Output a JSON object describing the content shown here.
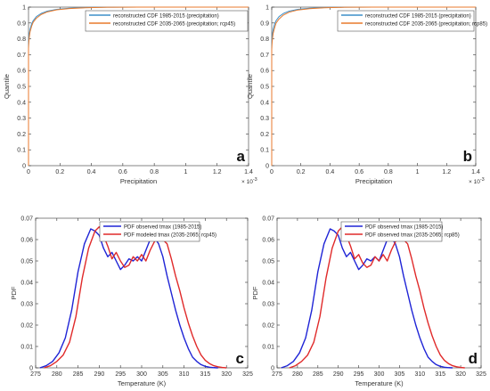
{
  "colors": {
    "blue_cdf": "#3d8fc9",
    "orange_cdf": "#e87a2c",
    "pdf_blue": "#1f24d6",
    "pdf_red": "#e02a2a",
    "axis": "#333333",
    "frame": "#666666"
  },
  "chart_data": [
    {
      "panel_label": "a",
      "type": "line",
      "xlabel": "Precipitation",
      "ylabel": "Quantile",
      "x_exponent_label": "× 10",
      "x_exponent_value": "-3",
      "xlim": [
        0,
        1.4
      ],
      "ylim": [
        0,
        1
      ],
      "xticks": [
        "0",
        "0.2",
        "0.4",
        "0.6",
        "0.8",
        "1",
        "1.2",
        "1.4"
      ],
      "yticks": [
        "0",
        "0.1",
        "0.2",
        "0.3",
        "0.4",
        "0.5",
        "0.6",
        "0.7",
        "0.8",
        "0.9",
        "1"
      ],
      "grid": false,
      "legend_position": "top-right",
      "series": [
        {
          "name": "reconstructed CDF 1985-2015 (precipitation)",
          "color": "#3d8fc9",
          "x": [
            0,
            0,
            0.002,
            0.005,
            0.01,
            0.02,
            0.03,
            0.05,
            0.08,
            0.12,
            0.18,
            0.26,
            0.36,
            0.5,
            0.7,
            1.0,
            1.4
          ],
          "y": [
            0,
            0.76,
            0.8,
            0.83,
            0.86,
            0.895,
            0.915,
            0.94,
            0.96,
            0.975,
            0.986,
            0.993,
            0.997,
            0.999,
            1.0,
            1.0,
            1.0
          ]
        },
        {
          "name": "reconstructed CDF 2035-2065 (precipitation; rcp45)",
          "color": "#e87a2c",
          "x": [
            0,
            0,
            0.002,
            0.005,
            0.01,
            0.02,
            0.03,
            0.05,
            0.08,
            0.12,
            0.18,
            0.26,
            0.36,
            0.5,
            0.7,
            1.0,
            1.4
          ],
          "y": [
            0,
            0.74,
            0.78,
            0.81,
            0.845,
            0.88,
            0.905,
            0.93,
            0.953,
            0.97,
            0.983,
            0.991,
            0.996,
            0.999,
            1.0,
            1.0,
            1.0
          ]
        }
      ]
    },
    {
      "panel_label": "b",
      "type": "line",
      "xlabel": "Precipitation",
      "ylabel": "Quantile",
      "x_exponent_label": "× 10",
      "x_exponent_value": "-3",
      "xlim": [
        0,
        1.4
      ],
      "ylim": [
        0,
        1
      ],
      "xticks": [
        "0",
        "0.2",
        "0.4",
        "0.6",
        "0.8",
        "1",
        "1.2",
        "1.4"
      ],
      "yticks": [
        "0",
        "0.1",
        "0.2",
        "0.3",
        "0.4",
        "0.5",
        "0.6",
        "0.7",
        "0.8",
        "0.9",
        "1"
      ],
      "grid": false,
      "legend_position": "top-right",
      "series": [
        {
          "name": "reconstructed CDF 1985-2015 (precipitation)",
          "color": "#3d8fc9",
          "x": [
            0,
            0,
            0.002,
            0.005,
            0.01,
            0.02,
            0.03,
            0.05,
            0.08,
            0.12,
            0.18,
            0.26,
            0.36,
            0.5,
            0.7,
            1.0,
            1.4
          ],
          "y": [
            0,
            0.76,
            0.8,
            0.83,
            0.86,
            0.895,
            0.915,
            0.94,
            0.96,
            0.975,
            0.986,
            0.993,
            0.997,
            0.999,
            1.0,
            1.0,
            1.0
          ]
        },
        {
          "name": "reconstructed CDF 2035-2065 (precipitation; rcp85)",
          "color": "#e87a2c",
          "x": [
            0,
            0,
            0.002,
            0.005,
            0.01,
            0.02,
            0.03,
            0.05,
            0.08,
            0.12,
            0.18,
            0.26,
            0.36,
            0.5,
            0.7,
            1.0,
            1.4
          ],
          "y": [
            0,
            0.73,
            0.77,
            0.8,
            0.835,
            0.87,
            0.9,
            0.925,
            0.95,
            0.968,
            0.982,
            0.99,
            0.996,
            0.999,
            1.0,
            1.0,
            1.0
          ]
        }
      ]
    },
    {
      "panel_label": "c",
      "type": "line",
      "xlabel": "Temperature (K)",
      "ylabel": "PDF",
      "xlim": [
        275,
        325
      ],
      "ylim": [
        0,
        0.07
      ],
      "xticks": [
        "275",
        "280",
        "285",
        "290",
        "295",
        "300",
        "305",
        "310",
        "315",
        "320",
        "325"
      ],
      "yticks": [
        "0",
        "0.01",
        "0.02",
        "0.03",
        "0.04",
        "0.05",
        "0.06",
        "0.07"
      ],
      "grid": false,
      "legend_position": "top-left",
      "series": [
        {
          "name": "PDF observed tmax (1985-2015)",
          "color": "#1f24d6",
          "x": [
            276,
            277.5,
            279,
            280.5,
            282,
            283.5,
            285,
            286.5,
            288,
            289,
            290,
            291,
            292,
            293,
            294,
            295,
            296,
            297,
            298,
            299,
            300,
            301,
            302,
            303,
            304,
            305,
            306,
            307,
            308,
            309,
            310,
            311,
            312,
            313,
            314,
            315,
            316,
            317,
            318
          ],
          "y": [
            0,
            0.001,
            0.003,
            0.007,
            0.014,
            0.027,
            0.045,
            0.058,
            0.065,
            0.064,
            0.062,
            0.056,
            0.052,
            0.054,
            0.05,
            0.046,
            0.048,
            0.051,
            0.05,
            0.052,
            0.05,
            0.055,
            0.06,
            0.061,
            0.058,
            0.052,
            0.043,
            0.035,
            0.027,
            0.02,
            0.014,
            0.009,
            0.005,
            0.003,
            0.0015,
            0.0007,
            0.0003,
            0.0001,
            0
          ]
        },
        {
          "name": "PDF modeled tmax (2035-2065; rcp45)",
          "color": "#e02a2a",
          "x": [
            277,
            278.5,
            280,
            281.5,
            283,
            284.5,
            286,
            287.5,
            289,
            290,
            291,
            292,
            293,
            294,
            295,
            296,
            297,
            298,
            299,
            300,
            301,
            302,
            303,
            304,
            305,
            306,
            307,
            308,
            309,
            310,
            311,
            312,
            313,
            314,
            315,
            316,
            317,
            318,
            319,
            320
          ],
          "y": [
            0,
            0.001,
            0.003,
            0.006,
            0.012,
            0.024,
            0.042,
            0.056,
            0.064,
            0.066,
            0.062,
            0.057,
            0.051,
            0.054,
            0.05,
            0.047,
            0.048,
            0.052,
            0.05,
            0.053,
            0.05,
            0.055,
            0.059,
            0.061,
            0.06,
            0.058,
            0.051,
            0.043,
            0.036,
            0.028,
            0.021,
            0.015,
            0.01,
            0.006,
            0.0035,
            0.002,
            0.001,
            0.0005,
            0.0002,
            0
          ]
        }
      ]
    },
    {
      "panel_label": "d",
      "type": "line",
      "xlabel": "Temperature (K)",
      "ylabel": "PDF",
      "xlim": [
        275,
        325
      ],
      "ylim": [
        0,
        0.07
      ],
      "xticks": [
        "275",
        "280",
        "285",
        "290",
        "295",
        "300",
        "305",
        "310",
        "315",
        "320",
        "325"
      ],
      "yticks": [
        "0",
        "0.01",
        "0.02",
        "0.03",
        "0.04",
        "0.05",
        "0.06",
        "0.07"
      ],
      "grid": false,
      "legend_position": "top-left",
      "series": [
        {
          "name": "PDF observed tmax (1985-2015)",
          "color": "#1f24d6",
          "x": [
            276,
            277.5,
            279,
            280.5,
            282,
            283.5,
            285,
            286.5,
            288,
            289,
            290,
            291,
            292,
            293,
            294,
            295,
            296,
            297,
            298,
            299,
            300,
            301,
            302,
            303,
            304,
            305,
            306,
            307,
            308,
            309,
            310,
            311,
            312,
            313,
            314,
            315,
            316,
            317,
            318
          ],
          "y": [
            0,
            0.001,
            0.003,
            0.007,
            0.014,
            0.027,
            0.045,
            0.058,
            0.065,
            0.064,
            0.062,
            0.056,
            0.052,
            0.054,
            0.05,
            0.046,
            0.048,
            0.051,
            0.05,
            0.052,
            0.05,
            0.055,
            0.06,
            0.061,
            0.058,
            0.052,
            0.043,
            0.035,
            0.027,
            0.02,
            0.014,
            0.009,
            0.005,
            0.003,
            0.0015,
            0.0007,
            0.0003,
            0.0001,
            0
          ]
        },
        {
          "name": "PDF observed tmax (2035-2065; rcp85)",
          "color": "#e02a2a",
          "x": [
            278,
            279.5,
            281,
            282.5,
            284,
            285.5,
            287,
            288.5,
            290,
            291,
            292,
            293,
            294,
            295,
            296,
            297,
            298,
            299,
            300,
            301,
            302,
            303,
            304,
            305,
            306,
            307,
            308,
            309,
            310,
            311,
            312,
            313,
            314,
            315,
            316,
            317,
            318,
            319,
            320,
            321
          ],
          "y": [
            0,
            0.001,
            0.003,
            0.006,
            0.012,
            0.024,
            0.042,
            0.056,
            0.064,
            0.066,
            0.062,
            0.057,
            0.051,
            0.053,
            0.049,
            0.047,
            0.048,
            0.052,
            0.05,
            0.053,
            0.05,
            0.055,
            0.059,
            0.061,
            0.06,
            0.058,
            0.051,
            0.043,
            0.036,
            0.028,
            0.021,
            0.015,
            0.01,
            0.006,
            0.0035,
            0.002,
            0.001,
            0.0005,
            0.0002,
            0
          ]
        }
      ]
    }
  ]
}
